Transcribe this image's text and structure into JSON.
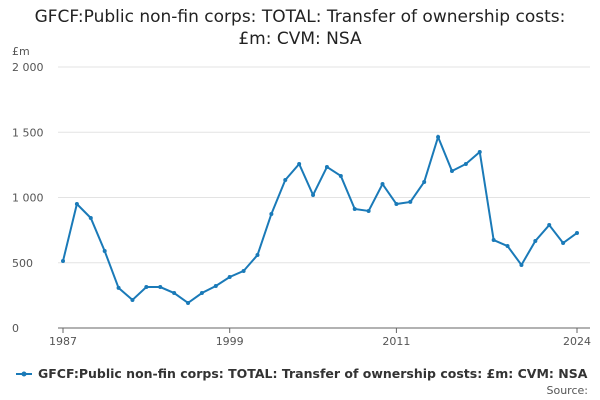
{
  "chart_data": {
    "type": "line",
    "title": "GFCF:Public non-fin corps: TOTAL: Transfer of ownership costs: £m: CVM: NSA",
    "y_unit": "£m",
    "source": "Source:",
    "x": [
      1987,
      1988,
      1989,
      1990,
      1991,
      1992,
      1993,
      1994,
      1995,
      1996,
      1997,
      1998,
      1999,
      2000,
      2001,
      2002,
      2003,
      2004,
      2005,
      2006,
      2007,
      2008,
      2009,
      2010,
      2011,
      2012,
      2013,
      2014,
      2015,
      2016,
      2017,
      2018,
      2019,
      2020,
      2021,
      2022,
      2023,
      2024
    ],
    "series": [
      {
        "name": "GFCF:Public non-fin corps: TOTAL: Transfer of ownership costs: £m: CVM: NSA",
        "color": "#1a7ab8",
        "values": [
          513,
          950,
          843,
          590,
          307,
          215,
          314,
          314,
          268,
          192,
          268,
          322,
          391,
          437,
          559,
          874,
          1134,
          1257,
          1019,
          1234,
          1165,
          912,
          897,
          1103,
          950,
          966,
          1119,
          1464,
          1203,
          1257,
          1349,
          674,
          628,
          483,
          667,
          789,
          651,
          728
        ]
      }
    ],
    "xlim": [
      1987,
      2024
    ],
    "xticks": [
      1987,
      1999,
      2011,
      2024
    ],
    "ylim": [
      0,
      2000
    ],
    "yticks": [
      0,
      500,
      {
        "value": 1000,
        "label": "1 000"
      },
      {
        "value": 1500,
        "label": "1 500"
      },
      {
        "value": 2000,
        "label": "2 000"
      }
    ],
    "grid": true
  }
}
